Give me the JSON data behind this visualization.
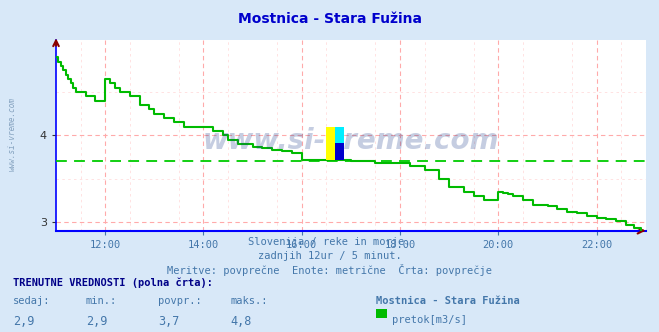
{
  "title": "Mostnica - Stara Fužina",
  "title_color": "#0000cc",
  "bg_color": "#d8e8f8",
  "plot_bg_color": "#ffffff",
  "grid_color_major": "#ffaaaa",
  "grid_color_minor": "#ffdddd",
  "x_ticks": [
    12,
    14,
    16,
    18,
    20,
    22
  ],
  "y_ticks": [
    3,
    4
  ],
  "avg_line_value": 3.7,
  "avg_line_color": "#00cc00",
  "axis_color": "#0000ff",
  "arrow_color": "#880000",
  "watermark": "www.si-vreme.com",
  "watermark_color": "#1a3a8a",
  "watermark_alpha": 0.25,
  "sidebar_text": "www.si-vreme.com",
  "sidebar_color": "#6688aa",
  "line_color": "#00bb00",
  "line_width": 1.5,
  "subtitle1": "Slovenija / reke in morje.",
  "subtitle2": "zadnjih 12ur / 5 minut.",
  "subtitle3": "Meritve: povprečne  Enote: metrične  Črta: povprečje",
  "subtitle_color": "#4477aa",
  "bottom_title": "TRENUTNE VREDNOSTI (polna črta):",
  "bottom_labels": [
    "sedaj:",
    "min.:",
    "povpr.:",
    "maks.:"
  ],
  "bottom_values": [
    "2,9",
    "2,9",
    "3,7",
    "4,8"
  ],
  "bottom_station": "Mostnica - Stara Fužina",
  "bottom_legend": "pretok[m3/s]",
  "bottom_legend_color": "#00bb00",
  "xlim": [
    11.0,
    23.0
  ],
  "ylim": [
    2.9,
    5.1
  ],
  "data_x": [
    11.0,
    11.05,
    11.1,
    11.15,
    11.2,
    11.25,
    11.3,
    11.35,
    11.4,
    11.5,
    11.6,
    11.7,
    11.8,
    11.9,
    12.0,
    12.1,
    12.2,
    12.3,
    12.5,
    12.7,
    12.9,
    13.0,
    13.2,
    13.4,
    13.5,
    13.6,
    13.8,
    14.0,
    14.2,
    14.4,
    14.5,
    14.7,
    14.9,
    15.0,
    15.2,
    15.4,
    15.6,
    15.8,
    16.0,
    16.2,
    16.35,
    16.5,
    16.6,
    16.7,
    16.8,
    17.0,
    17.5,
    17.8,
    18.0,
    18.2,
    18.5,
    18.8,
    19.0,
    19.3,
    19.5,
    19.7,
    20.0,
    20.1,
    20.2,
    20.3,
    20.5,
    20.7,
    21.0,
    21.2,
    21.4,
    21.6,
    21.8,
    22.0,
    22.2,
    22.4,
    22.6,
    22.75,
    22.9
  ],
  "data_y": [
    4.9,
    4.85,
    4.8,
    4.75,
    4.7,
    4.65,
    4.6,
    4.55,
    4.5,
    4.5,
    4.45,
    4.45,
    4.4,
    4.4,
    4.65,
    4.6,
    4.55,
    4.5,
    4.45,
    4.35,
    4.3,
    4.25,
    4.2,
    4.15,
    4.15,
    4.1,
    4.1,
    4.1,
    4.05,
    4.0,
    3.95,
    3.9,
    3.9,
    3.87,
    3.85,
    3.83,
    3.82,
    3.8,
    3.72,
    3.72,
    3.72,
    3.72,
    3.72,
    3.72,
    3.72,
    3.7,
    3.68,
    3.68,
    3.68,
    3.65,
    3.6,
    3.5,
    3.4,
    3.35,
    3.3,
    3.25,
    3.35,
    3.33,
    3.32,
    3.3,
    3.25,
    3.2,
    3.18,
    3.15,
    3.12,
    3.1,
    3.07,
    3.05,
    3.03,
    3.01,
    2.97,
    2.93,
    2.9
  ]
}
